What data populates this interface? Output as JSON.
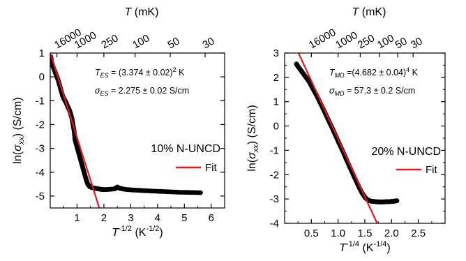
{
  "chart_data": [
    {
      "type": "scatter",
      "panel": "left",
      "xlabel_main": "T",
      "xlabel_sup": "-1/2",
      "xlabel_unit_pre": " (K",
      "xlabel_unit_sup": "-1/2",
      "xlabel_unit_post": ")",
      "ylabel": "ln(σ_xx) (S/cm)",
      "ylabel_pre": "ln(",
      "ylabel_sigma": "σ",
      "ylabel_sub": "xx",
      "ylabel_post": ") (S/cm)",
      "top_axis_label_T": "T",
      "top_axis_label_unit": " (mK)",
      "xlim": [
        0,
        6.5
      ],
      "ylim": [
        -5.5,
        1
      ],
      "x_ticks": [
        1,
        2,
        3,
        4,
        5,
        6
      ],
      "y_ticks": [
        1,
        0,
        -1,
        -2,
        -3,
        -4,
        -5
      ],
      "top_ticks": [
        {
          "label": "16000",
          "x": 0.25
        },
        {
          "label": "1000",
          "x": 1.0
        },
        {
          "label": "250",
          "x": 2.0
        },
        {
          "label": "100",
          "x": 3.1623
        },
        {
          "label": "50",
          "x": 4.4721
        },
        {
          "label": "30",
          "x": 5.7735
        }
      ],
      "series": [
        {
          "kind": "data",
          "x": [
            0.02,
            0.05,
            0.1,
            0.15,
            0.2,
            0.25,
            0.3,
            0.35,
            0.4,
            0.45,
            0.5,
            0.55,
            0.6,
            0.65,
            0.7,
            0.75,
            0.8,
            0.85,
            0.9,
            0.92,
            0.95,
            1.0,
            1.05,
            1.1,
            1.15,
            1.2,
            1.25,
            1.3,
            1.35,
            1.4,
            1.45,
            1.5,
            1.55,
            1.6,
            1.7,
            1.8,
            1.9,
            2.0,
            2.2,
            2.4,
            2.5,
            2.6,
            2.8,
            3.0,
            3.3,
            3.6,
            4.0,
            4.4,
            4.8,
            5.2,
            5.6
          ],
          "y": [
            0.85,
            0.65,
            0.45,
            0.3,
            0.15,
            0.0,
            -0.15,
            -0.35,
            -0.55,
            -0.75,
            -0.9,
            -1.0,
            -1.1,
            -1.25,
            -1.35,
            -1.5,
            -1.7,
            -2.0,
            -2.35,
            -2.6,
            -2.75,
            -2.95,
            -3.15,
            -3.35,
            -3.55,
            -3.75,
            -3.95,
            -4.15,
            -4.35,
            -4.5,
            -4.58,
            -4.62,
            -4.64,
            -4.66,
            -4.68,
            -4.7,
            -4.72,
            -4.73,
            -4.72,
            -4.7,
            -4.62,
            -4.68,
            -4.72,
            -4.74,
            -4.76,
            -4.78,
            -4.8,
            -4.82,
            -4.84,
            -4.85,
            -4.86
          ]
        },
        {
          "name": "Fit",
          "kind": "fit",
          "x": [
            0.02,
            1.83
          ],
          "y": [
            0.95,
            -5.5
          ]
        }
      ],
      "annotations": {
        "param1_main": "T",
        "param1_sub": "ES",
        "param1_rest": " = (3.374 ± 0.02)",
        "param1_sup": "2",
        "param1_unit": " K",
        "param2_main": "σ",
        "param2_sub": "ES",
        "param2_rest": " = 2.275 ± 0.02 S/cm",
        "sample": "10% N-UNCD",
        "legend": "Fit"
      }
    },
    {
      "type": "scatter",
      "panel": "right",
      "xlabel_main": "T",
      "xlabel_sup": "-1/4",
      "xlabel_unit_pre": " (K",
      "xlabel_unit_sup": "-1/4",
      "xlabel_unit_post": ")",
      "ylabel": "ln(σ_xx) (S/cm)",
      "ylabel_pre": "ln(",
      "ylabel_sigma": "σ",
      "ylabel_sub": "xx",
      "ylabel_post": ") (S/cm)",
      "top_axis_label_T": "T",
      "top_axis_label_unit": " (mK)",
      "xlim": [
        0,
        3.0
      ],
      "ylim": [
        -4,
        3
      ],
      "x_ticks": [
        0.5,
        1.0,
        1.5,
        2.0,
        2.5
      ],
      "y_ticks": [
        3,
        2,
        1,
        0,
        -1,
        -2,
        -3,
        -4
      ],
      "top_ticks": [
        {
          "label": "16000",
          "x": 0.5
        },
        {
          "label": "1000",
          "x": 1.0
        },
        {
          "label": "250",
          "x": 1.4142
        },
        {
          "label": "100",
          "x": 1.7783
        },
        {
          "label": "50",
          "x": 2.1147
        },
        {
          "label": "30",
          "x": 2.4028
        }
      ],
      "series": [
        {
          "kind": "data",
          "x": [
            0.22,
            0.25,
            0.3,
            0.35,
            0.4,
            0.45,
            0.5,
            0.55,
            0.6,
            0.65,
            0.7,
            0.75,
            0.8,
            0.85,
            0.9,
            0.95,
            1.0,
            1.05,
            1.1,
            1.15,
            1.2,
            1.25,
            1.3,
            1.35,
            1.4,
            1.45,
            1.5,
            1.55,
            1.6,
            1.65,
            1.7,
            1.75,
            1.8,
            1.85,
            1.9,
            1.95,
            2.0,
            2.05,
            2.1
          ],
          "y": [
            2.55,
            2.45,
            2.3,
            2.15,
            2.0,
            1.85,
            1.65,
            1.45,
            1.25,
            1.02,
            0.8,
            0.57,
            0.33,
            0.1,
            -0.13,
            -0.38,
            -0.62,
            -0.86,
            -1.1,
            -1.35,
            -1.6,
            -1.84,
            -2.08,
            -2.32,
            -2.55,
            -2.76,
            -2.93,
            -3.03,
            -3.08,
            -3.1,
            -3.11,
            -3.12,
            -3.12,
            -3.12,
            -3.11,
            -3.11,
            -3.1,
            -3.09,
            -3.07
          ]
        },
        {
          "name": "Fit",
          "kind": "fit",
          "x": [
            0.26,
            1.73
          ],
          "y": [
            3.0,
            -4.0
          ]
        }
      ],
      "annotations": {
        "param1_main": "T",
        "param1_sub": "MD",
        "param1_rest": " =(4.682 ± 0.04)",
        "param1_sup": "4",
        "param1_unit": " K",
        "param2_main": "σ",
        "param2_sub": "MD",
        "param2_rest": " = 57.3 ± 0.2 S/cm",
        "sample": "20% N-UNCD",
        "legend": "Fit"
      }
    }
  ],
  "colors": {
    "data": "#000000",
    "fit": "#e8191d",
    "axis": "#000000"
  }
}
